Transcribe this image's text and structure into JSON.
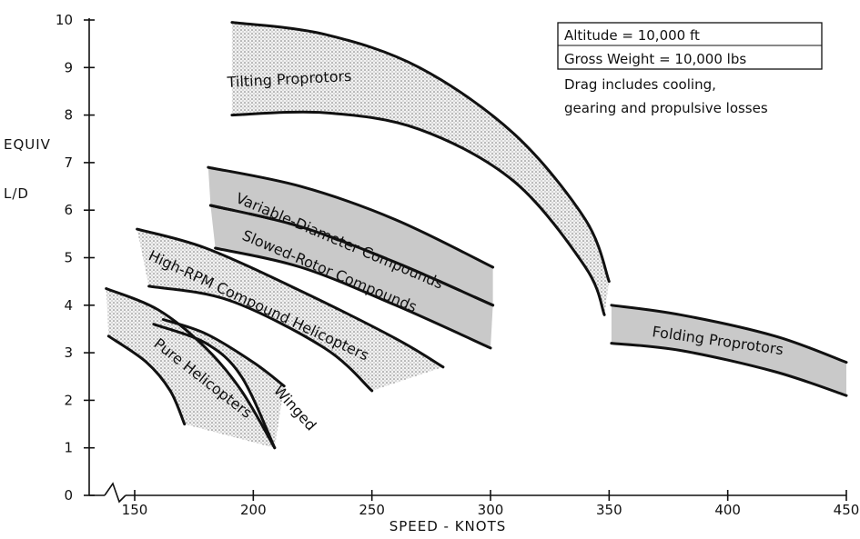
{
  "chart_data": {
    "type": "area",
    "xlabel": "SPEED - KNOTS",
    "ylabel_lines": [
      "EQUIV",
      "L/D"
    ],
    "x_ticks": [
      150,
      200,
      250,
      300,
      350,
      400,
      450
    ],
    "y_ticks": [
      0,
      1,
      2,
      3,
      4,
      5,
      6,
      7,
      8,
      9,
      10
    ],
    "xlim": [
      130,
      450
    ],
    "ylim": [
      0,
      10
    ],
    "x_axis_break": true,
    "annotation_box": [
      "Altitude = 10,000 ft",
      "Gross Weight = 10,000 lbs"
    ],
    "annotation_text": [
      "Drag includes cooling,",
      "gearing and propulsive losses"
    ],
    "series": [
      {
        "name": "Tilting Proprotors",
        "upper": [
          [
            191,
            9.95
          ],
          [
            230,
            9.7
          ],
          [
            270,
            9.0
          ],
          [
            310,
            7.6
          ],
          [
            340,
            5.8
          ],
          [
            350,
            4.5
          ]
        ],
        "lower": [
          [
            191,
            8.0
          ],
          [
            230,
            8.05
          ],
          [
            270,
            7.7
          ],
          [
            310,
            6.6
          ],
          [
            340,
            4.8
          ],
          [
            348,
            3.8
          ]
        ]
      },
      {
        "name": "Variable-Diameter Compounds",
        "upper": [
          [
            181,
            6.9
          ],
          [
            220,
            6.5
          ],
          [
            260,
            5.8
          ],
          [
            301,
            4.8
          ]
        ],
        "lower": [
          [
            182,
            6.1
          ],
          [
            220,
            5.65
          ],
          [
            260,
            4.9
          ],
          [
            301,
            4.0
          ]
        ]
      },
      {
        "name": "Slowed-Rotor Compounds",
        "upper": [
          [
            182,
            6.1
          ],
          [
            220,
            5.65
          ],
          [
            260,
            4.9
          ],
          [
            301,
            4.0
          ]
        ],
        "lower": [
          [
            184,
            5.2
          ],
          [
            220,
            4.8
          ],
          [
            260,
            4.0
          ],
          [
            300,
            3.1
          ]
        ]
      },
      {
        "name": "High-RPM Compound Helicopters",
        "upper": [
          [
            151,
            5.6
          ],
          [
            180,
            5.2
          ],
          [
            220,
            4.3
          ],
          [
            260,
            3.3
          ],
          [
            280,
            2.7
          ]
        ],
        "lower": [
          [
            156,
            4.4
          ],
          [
            190,
            4.1
          ],
          [
            230,
            3.1
          ],
          [
            250,
            2.2
          ]
        ]
      },
      {
        "name": "Pure Helicopters",
        "upper": [
          [
            138,
            4.35
          ],
          [
            160,
            3.9
          ],
          [
            180,
            3.1
          ],
          [
            195,
            2.2
          ],
          [
            209,
            1.0
          ]
        ],
        "lower": [
          [
            139,
            3.35
          ],
          [
            155,
            2.8
          ],
          [
            165,
            2.2
          ],
          [
            171,
            1.5
          ]
        ]
      },
      {
        "name": "Winged",
        "upper": [
          [
            162,
            3.7
          ],
          [
            180,
            3.4
          ],
          [
            200,
            2.8
          ],
          [
            213,
            2.3
          ]
        ],
        "lower": [
          [
            158,
            3.6
          ],
          [
            180,
            3.2
          ],
          [
            195,
            2.5
          ],
          [
            209,
            1.0
          ]
        ]
      },
      {
        "name": "Folding Proprotors",
        "upper": [
          [
            351,
            4.0
          ],
          [
            380,
            3.8
          ],
          [
            420,
            3.35
          ],
          [
            450,
            2.8
          ]
        ],
        "lower": [
          [
            351,
            3.2
          ],
          [
            380,
            3.05
          ],
          [
            420,
            2.6
          ],
          [
            450,
            2.1
          ]
        ]
      }
    ]
  }
}
